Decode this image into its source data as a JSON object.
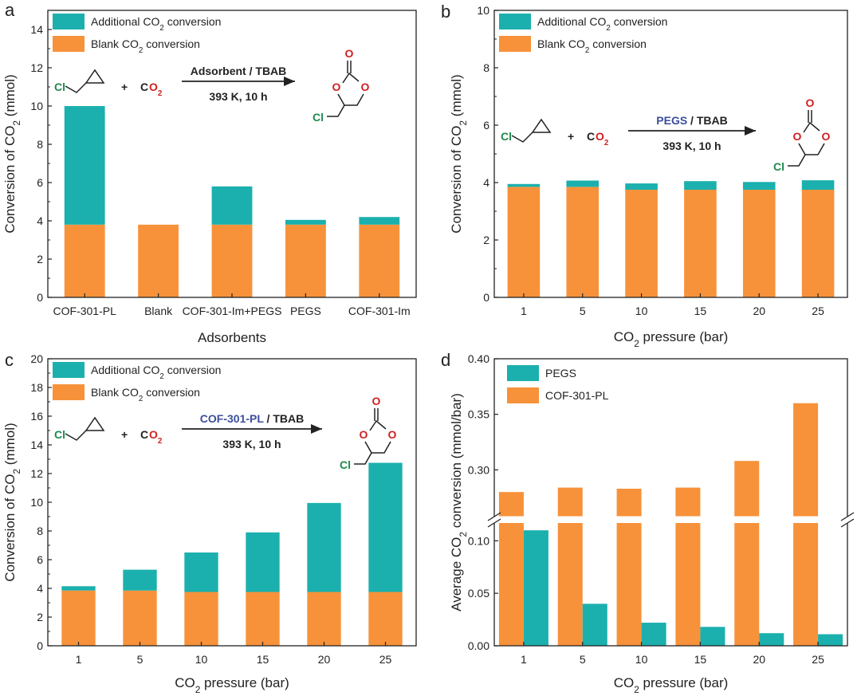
{
  "colors": {
    "orange": "#F7923A",
    "teal": "#1BB0AE",
    "axis": "#222222",
    "chlorine": "#1E8A4C",
    "oxygen": "#D11F1F",
    "highlight": "#3C4E9C"
  },
  "chart_data": [
    {
      "panel": "a",
      "type": "bar",
      "stacked": true,
      "categories": [
        "COF-301-PL",
        "Blank",
        "COF-301-Im+PEGS",
        "PEGS",
        "COF-301-Im"
      ],
      "series": [
        {
          "name": "Blank CO₂ conversion",
          "values": [
            3.8,
            3.8,
            3.8,
            3.8,
            3.8
          ]
        },
        {
          "name": "Additional CO₂ conversion",
          "values": [
            6.2,
            0,
            2.0,
            0.25,
            0.4
          ]
        }
      ],
      "xlabel": "Adsorbents",
      "ylabel": "Conversion of CO₂ (mmol)",
      "ylim": [
        0,
        15
      ],
      "yticks": [
        "0",
        "2",
        "4",
        "6",
        "8",
        "10",
        "12",
        "14"
      ],
      "legend": [
        "Additional CO₂ conversion",
        "Blank CO₂ conversion"
      ],
      "scheme": {
        "cl": "Cl",
        "plus": "+",
        "co2_c": "C",
        "co2_o": "O₂",
        "reagent_highlight": "",
        "reagent_rest": "Adsorbent / TBAB",
        "conditions": "393 K, 10 h",
        "carbonyl_o": "O",
        "ring_o1": "O",
        "ring_o2": "O"
      }
    },
    {
      "panel": "b",
      "type": "bar",
      "stacked": true,
      "categories": [
        "1",
        "5",
        "10",
        "15",
        "20",
        "25"
      ],
      "series": [
        {
          "name": "Blank CO₂ conversion",
          "values": [
            3.85,
            3.85,
            3.75,
            3.75,
            3.75,
            3.75
          ]
        },
        {
          "name": "Additional CO₂ conversion",
          "values": [
            0.1,
            0.22,
            0.22,
            0.3,
            0.27,
            0.33
          ]
        }
      ],
      "xlabel": "CO₂ pressure (bar)",
      "ylabel": "Conversion of CO₂ (mmol)",
      "ylim": [
        0,
        10
      ],
      "yticks": [
        "0",
        "2",
        "4",
        "6",
        "8",
        "10"
      ],
      "legend": [
        "Additional CO₂ conversion",
        "Blank CO₂ conversion"
      ],
      "scheme": {
        "cl": "Cl",
        "plus": "+",
        "co2_c": "C",
        "co2_o": "O₂",
        "reagent_highlight": "PEGS",
        "reagent_rest": " / TBAB",
        "conditions": "393 K, 10 h",
        "carbonyl_o": "O",
        "ring_o1": "O",
        "ring_o2": "O"
      }
    },
    {
      "panel": "c",
      "type": "bar",
      "stacked": true,
      "categories": [
        "1",
        "5",
        "10",
        "15",
        "20",
        "25"
      ],
      "series": [
        {
          "name": "Blank CO₂ conversion",
          "values": [
            3.85,
            3.85,
            3.75,
            3.75,
            3.75,
            3.75
          ]
        },
        {
          "name": "Additional CO₂ conversion",
          "values": [
            0.3,
            1.45,
            2.75,
            4.15,
            6.2,
            9.0
          ]
        }
      ],
      "xlabel": "CO₂ pressure (bar)",
      "ylabel": "Conversion of CO₂ (mmol)",
      "ylim": [
        0,
        20
      ],
      "yticks": [
        "0",
        "2",
        "4",
        "6",
        "8",
        "10",
        "12",
        "14",
        "16",
        "18",
        "20"
      ],
      "legend": [
        "Additional CO₂ conversion",
        "Blank CO₂ conversion"
      ],
      "scheme": {
        "cl": "Cl",
        "plus": "+",
        "co2_c": "C",
        "co2_o": "O₂",
        "reagent_highlight": "COF-301-PL",
        "reagent_rest": " / TBAB",
        "conditions": "393 K, 10 h",
        "carbonyl_o": "O",
        "ring_o1": "O",
        "ring_o2": "O"
      }
    },
    {
      "panel": "d",
      "type": "bar",
      "grouped": true,
      "broken_axis": true,
      "categories": [
        "1",
        "5",
        "10",
        "15",
        "20",
        "25"
      ],
      "series": [
        {
          "name": "COF-301-PL",
          "values": [
            0.28,
            0.284,
            0.283,
            0.284,
            0.308,
            0.36
          ]
        },
        {
          "name": "PEGS",
          "values": [
            0.11,
            0.04,
            0.022,
            0.018,
            0.012,
            0.011
          ]
        }
      ],
      "xlabel": "CO₂ pressure (bar)",
      "ylabel": "Average CO₂ conversion (mmol/bar)",
      "ylim_lower": [
        0,
        0.12
      ],
      "ylim_upper": [
        0.255,
        0.4
      ],
      "yticks_lower": [
        "0.00",
        "0.05",
        "0.10"
      ],
      "yticks_upper": [
        "0.30",
        "0.35",
        "0.40"
      ],
      "legend": [
        "PEGS",
        "COF-301-PL"
      ]
    }
  ]
}
